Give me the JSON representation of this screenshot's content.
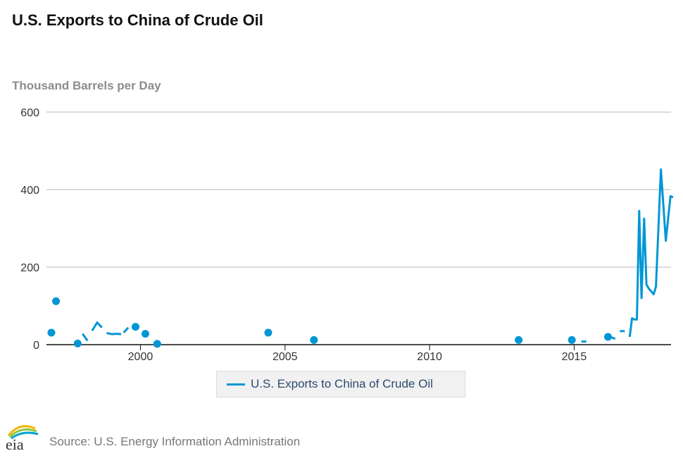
{
  "chart_data": {
    "type": "line",
    "title": "U.S. Exports to China of Crude Oil",
    "ylabel": "Thousand Barrels per Day",
    "xlabel": "",
    "xlim": [
      1996.75,
      2018.35
    ],
    "ylim": [
      0,
      600
    ],
    "x_ticks": [
      2000,
      2005,
      2010,
      2015
    ],
    "y_ticks": [
      0,
      200,
      400,
      600
    ],
    "grid": "horizontal",
    "legend_position": "bottom",
    "series": [
      {
        "name": "U.S. Exports to China of Crude Oil",
        "color": "#0096d6",
        "segments": [
          [
            [
              1996.92,
              31
            ]
          ],
          [
            [
              1997.08,
              112
            ]
          ],
          [
            [
              1997.83,
              3
            ]
          ],
          [
            [
              1998.0,
              28
            ],
            [
              1998.17,
              10
            ]
          ],
          [
            [
              1998.33,
              36
            ],
            [
              1998.5,
              57
            ],
            [
              1998.67,
              44
            ]
          ],
          [
            [
              1998.83,
              30
            ],
            [
              1999.0,
              27
            ],
            [
              1999.17,
              28
            ],
            [
              1999.33,
              27
            ]
          ],
          [
            [
              1999.42,
              31
            ],
            [
              1999.58,
              44
            ]
          ],
          [
            [
              1999.83,
              46
            ]
          ],
          [
            [
              2000.17,
              28
            ]
          ],
          [
            [
              2000.58,
              2
            ]
          ],
          [
            [
              2004.42,
              31
            ]
          ],
          [
            [
              2006.0,
              12
            ]
          ],
          [
            [
              2013.08,
              12
            ]
          ],
          [
            [
              2014.92,
              12
            ]
          ],
          [
            [
              2015.25,
              8
            ],
            [
              2015.42,
              8
            ]
          ],
          [
            [
              2016.17,
              20
            ]
          ],
          [
            [
              2016.25,
              20
            ],
            [
              2016.42,
              15
            ]
          ],
          [
            [
              2016.58,
              35
            ],
            [
              2016.75,
              35
            ]
          ],
          [
            [
              2016.92,
              20
            ],
            [
              2017.0,
              68
            ],
            [
              2017.08,
              65
            ],
            [
              2017.17,
              65
            ],
            [
              2017.25,
              345
            ],
            [
              2017.33,
              120
            ],
            [
              2017.42,
              325
            ],
            [
              2017.5,
              155
            ],
            [
              2017.58,
              145
            ],
            [
              2017.75,
              130
            ],
            [
              2017.83,
              150
            ],
            [
              2018.0,
              452
            ],
            [
              2018.17,
              268
            ],
            [
              2018.33,
              383
            ],
            [
              2018.42,
              380
            ]
          ]
        ]
      }
    ]
  },
  "legend": {
    "label": "U.S. Exports to China of Crude Oil",
    "color": "#0096d6"
  },
  "footer": {
    "source": "Source: U.S. Energy Information Administration",
    "logo_text": "eia"
  },
  "colors": {
    "line": "#0096d6",
    "grid": "#c8c8c8",
    "axis": "#111111",
    "tick_text": "#333333"
  }
}
